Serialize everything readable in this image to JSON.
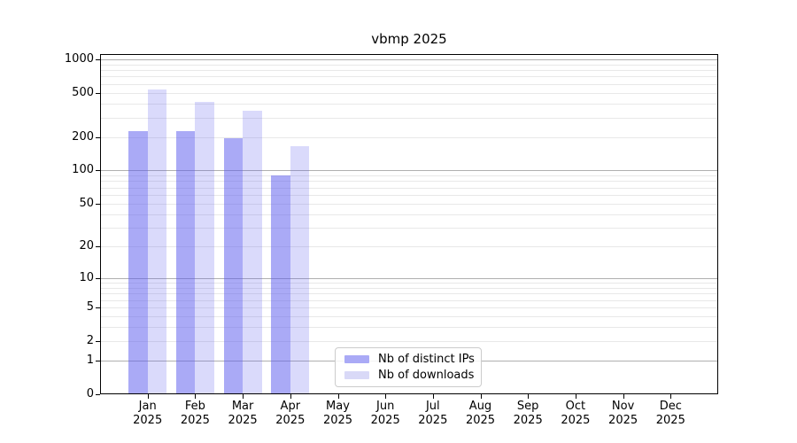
{
  "chart_data": {
    "type": "bar",
    "title": "vbmp 2025",
    "xlabel": "",
    "ylabel": "",
    "yscale": "log1p",
    "ylim": [
      0,
      1110
    ],
    "yticks": [
      0,
      1,
      2,
      5,
      10,
      20,
      50,
      100,
      200,
      500,
      1000
    ],
    "grid": "on",
    "grid_major_lines": [
      1,
      10,
      100,
      1000
    ],
    "grid_minor_lines": [
      2,
      3,
      4,
      5,
      6,
      7,
      8,
      9,
      20,
      30,
      40,
      50,
      60,
      70,
      80,
      90,
      200,
      300,
      400,
      500,
      600,
      700,
      800,
      900
    ],
    "categories": [
      "Jan",
      "Feb",
      "Mar",
      "Apr",
      "May",
      "Jun",
      "Jul",
      "Aug",
      "Sep",
      "Oct",
      "Nov",
      "Dec"
    ],
    "category_year": "2025",
    "series": [
      {
        "name": "Nb of distinct IPs",
        "swatch_color": "#aaaaf6",
        "fill": "rgba(85,85,238,0.50)",
        "values": [
          225,
          225,
          195,
          90,
          null,
          null,
          null,
          null,
          null,
          null,
          null,
          null
        ]
      },
      {
        "name": "Nb of downloads",
        "swatch_color": "#d9d9f7",
        "fill": "rgba(85,85,238,0.22)",
        "values": [
          535,
          410,
          345,
          165,
          null,
          null,
          null,
          null,
          null,
          null,
          null,
          null
        ]
      }
    ],
    "legend_position": "lower center",
    "colors": {
      "axis": "#000000",
      "grid_minor": "#e8e8e8",
      "grid_major": "#b0b0b0",
      "background": "#ffffff"
    }
  },
  "legend": {
    "items": [
      {
        "label": "Nb of distinct IPs",
        "swatch_color": "#aaaaf6"
      },
      {
        "label": "Nb of downloads",
        "swatch_color": "#d9d9f7"
      }
    ]
  }
}
